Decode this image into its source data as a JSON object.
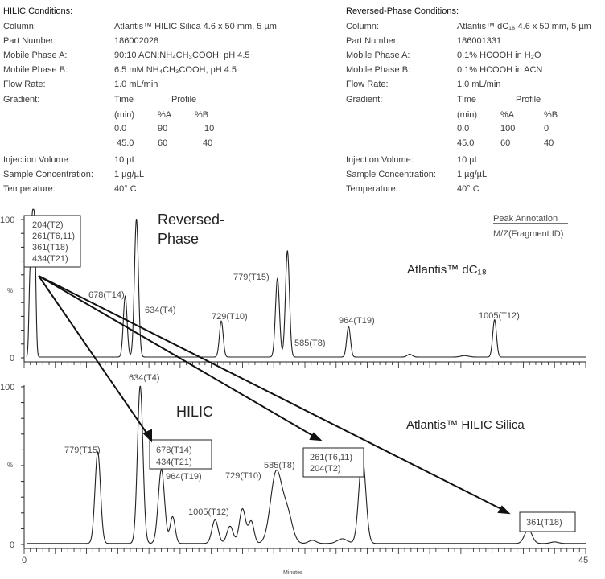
{
  "conditions": {
    "hilic": {
      "title": "HILIC Conditions:",
      "rows": [
        {
          "label": "Column:",
          "value": "Atlantis™ HILIC Silica 4.6 x 50 mm, 5 µm"
        },
        {
          "label": "Part Number:",
          "value": "186002028"
        },
        {
          "label": "Mobile Phase A:",
          "value": "90:10 ACN:NH₄CH₃COOH, pH 4.5"
        },
        {
          "label": "Mobile Phase B:",
          "value": "6.5 mM NH₄CH₃COOH, pH 4.5"
        },
        {
          "label": "Flow Rate:",
          "value": "1.0 mL/min"
        },
        {
          "label": "Gradient:",
          "value": ""
        },
        {
          "label": "Injection Volume:",
          "value": "10 µL"
        },
        {
          "label": "Sample Concentration:",
          "value": "1 µg/µL"
        },
        {
          "label": "Temperature:",
          "value": "40° C"
        }
      ],
      "gradient": {
        "time_header": "Time",
        "profile_header": "Profile",
        "unit": "(min)",
        "a_header": "%A",
        "b_header": "%B",
        "steps": [
          {
            "time": "0.0",
            "a": "90",
            "b": "10"
          },
          {
            "time": "45.0",
            "a": "60",
            "b": "40"
          }
        ]
      }
    },
    "rp": {
      "title": "Reversed-Phase Conditions:",
      "rows": [
        {
          "label": "Column:",
          "value": "Atlantis™ dC₁₈ 4.6 x 50 mm, 5 µm"
        },
        {
          "label": "Part Number:",
          "value": "186001331"
        },
        {
          "label": "Mobile Phase A:",
          "value": "0.1% HCOOH in H₂O"
        },
        {
          "label": "Mobile Phase B:",
          "value": "0.1% HCOOH in ACN"
        },
        {
          "label": "Flow Rate:",
          "value": "1.0 mL/min"
        },
        {
          "label": "Gradient:",
          "value": ""
        },
        {
          "label": "Injection Volume:",
          "value": "10 µL"
        },
        {
          "label": "Sample Concentration:",
          "value": "1 µg/µL"
        },
        {
          "label": "Temperature:",
          "value": "40° C"
        }
      ],
      "gradient": {
        "time_header": "Time",
        "profile_header": "Profile",
        "unit": "(min)",
        "a_header": "%A",
        "b_header": "%B",
        "steps": [
          {
            "time": "0.0",
            "a": "100",
            "b": "0"
          },
          {
            "time": "45.0",
            "a": "60",
            "b": "40"
          }
        ]
      }
    }
  },
  "legend": {
    "title": "Peak Annotation",
    "subtitle": "M/Z(Fragment ID)"
  },
  "chart_data": [
    {
      "type": "line",
      "title": "Reversed-Phase",
      "column_label": "Atlantis™ dC₁₈",
      "xlabel": "",
      "ylabel": "%",
      "xlim": [
        0,
        45
      ],
      "ylim": [
        0,
        100
      ],
      "y_tick_labels": [
        "100",
        "%",
        "0"
      ],
      "peaks": [
        {
          "t": 0.45,
          "height": 45,
          "width": 0.08
        },
        {
          "t": 0.64,
          "height": 88,
          "width": 0.1
        },
        {
          "t": 0.84,
          "height": 88,
          "width": 0.1
        },
        {
          "t": 8.1,
          "height": 44,
          "width": 0.15
        },
        {
          "t": 9.0,
          "height": 100,
          "width": 0.16
        },
        {
          "t": 15.8,
          "height": 26,
          "width": 0.15
        },
        {
          "t": 20.3,
          "height": 57,
          "width": 0.16
        },
        {
          "t": 21.1,
          "height": 77,
          "width": 0.16
        },
        {
          "t": 26.0,
          "height": 22,
          "width": 0.15
        },
        {
          "t": 30.9,
          "height": 2,
          "width": 0.2
        },
        {
          "t": 35.3,
          "height": 1,
          "width": 0.3
        },
        {
          "t": 37.7,
          "height": 27,
          "width": 0.15
        }
      ],
      "annotations": {
        "box": [
          "204(T2)",
          "261(T6,11)",
          "361(T18)",
          "434(T21)"
        ],
        "t14": "678(T14)",
        "t4": "634(T4)",
        "t10": "729(T10)",
        "t15": "779(T15)",
        "t8": "585(T8)",
        "t19": "964(T19)",
        "t12": "1005(T12)"
      }
    },
    {
      "type": "line",
      "title": "HILIC",
      "column_label": "Atlantis™ HILIC Silica",
      "xlabel": "Minutes",
      "ylabel": "%",
      "xlim": [
        0,
        45
      ],
      "ylim": [
        0,
        100
      ],
      "x_tick_labels": [
        "0",
        "45"
      ],
      "y_tick_labels": [
        "100",
        "%",
        "0"
      ],
      "peaks": [
        {
          "t": 5.9,
          "height": 58,
          "width": 0.22
        },
        {
          "t": 9.3,
          "height": 100,
          "width": 0.22
        },
        {
          "t": 11.0,
          "height": 47,
          "width": 0.25
        },
        {
          "t": 11.9,
          "height": 17,
          "width": 0.2
        },
        {
          "t": 15.3,
          "height": 15,
          "width": 0.25
        },
        {
          "t": 16.5,
          "height": 11,
          "width": 0.25
        },
        {
          "t": 17.5,
          "height": 22,
          "width": 0.25
        },
        {
          "t": 18.2,
          "height": 14,
          "width": 0.22
        },
        {
          "t": 20.2,
          "height": 45,
          "width": 0.45
        },
        {
          "t": 21.1,
          "height": 18,
          "width": 0.4
        },
        {
          "t": 23.1,
          "height": 2,
          "width": 0.3
        },
        {
          "t": 25.5,
          "height": 3,
          "width": 0.4
        },
        {
          "t": 27.1,
          "height": 55,
          "width": 0.28
        },
        {
          "t": 40.4,
          "height": 9,
          "width": 0.3
        },
        {
          "t": 42.5,
          "height": 1,
          "width": 0.3
        }
      ],
      "annotations": {
        "t4": "634(T4)",
        "t15": "779(T15)",
        "box1": [
          "678(T14)",
          "434(T21)"
        ],
        "t19": "964(T19)",
        "t10": "729(T10)",
        "t12": "1005(T12)",
        "t8": "585(T8)",
        "box2": [
          "261(T6,11)",
          "204(T2)"
        ],
        "box3": "361(T18)"
      }
    }
  ]
}
